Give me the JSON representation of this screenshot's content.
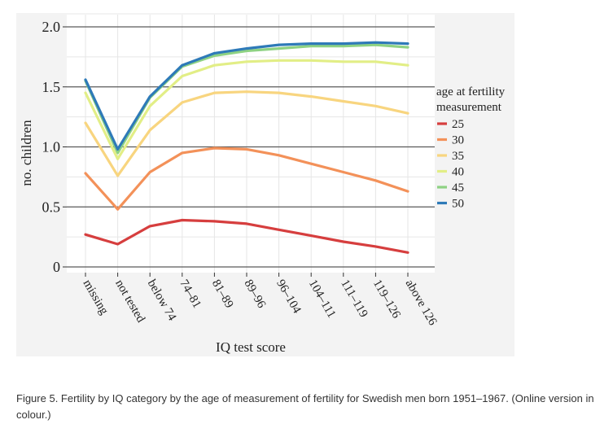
{
  "chart_data": {
    "type": "line",
    "xlabel": "IQ test score",
    "ylabel": "no. children",
    "categories": [
      "missing",
      "not tested",
      "below 74",
      "74–81",
      "81–89",
      "89–96",
      "96–104",
      "104–111",
      "111–119",
      "119–126",
      "above 126"
    ],
    "ylim": [
      0,
      2.0
    ],
    "yticks": [
      0,
      0.5,
      1.0,
      1.5,
      2.0
    ],
    "ytick_labels": [
      "0",
      "0.5",
      "1.0",
      "1.5",
      "2.0"
    ],
    "grid": true,
    "legend": {
      "title": "age at fertility measurement",
      "placement": "right"
    },
    "series": [
      {
        "name": "25",
        "color": "#d63e3e",
        "values": [
          0.27,
          0.19,
          0.34,
          0.39,
          0.38,
          0.36,
          0.31,
          0.26,
          0.21,
          0.17,
          0.12
        ]
      },
      {
        "name": "30",
        "color": "#f39159",
        "values": [
          0.78,
          0.48,
          0.79,
          0.95,
          0.99,
          0.98,
          0.93,
          0.86,
          0.79,
          0.72,
          0.63
        ]
      },
      {
        "name": "35",
        "color": "#f8d57f",
        "values": [
          1.2,
          0.76,
          1.14,
          1.37,
          1.45,
          1.46,
          1.45,
          1.42,
          1.38,
          1.34,
          1.28
        ]
      },
      {
        "name": "40",
        "color": "#e2ee86",
        "values": [
          1.45,
          0.9,
          1.34,
          1.59,
          1.68,
          1.71,
          1.72,
          1.72,
          1.71,
          1.71,
          1.68
        ]
      },
      {
        "name": "45",
        "color": "#8ed283",
        "values": [
          1.55,
          0.95,
          1.41,
          1.67,
          1.76,
          1.8,
          1.82,
          1.84,
          1.84,
          1.85,
          1.83
        ]
      },
      {
        "name": "50",
        "color": "#2e7ab8",
        "values": [
          1.56,
          0.98,
          1.42,
          1.68,
          1.78,
          1.82,
          1.85,
          1.86,
          1.86,
          1.87,
          1.86
        ]
      }
    ]
  },
  "caption": "Figure 5. Fertility by IQ category by the age of measurement of fertility for Swedish men born 1951–1967. (Online version in colour.)"
}
